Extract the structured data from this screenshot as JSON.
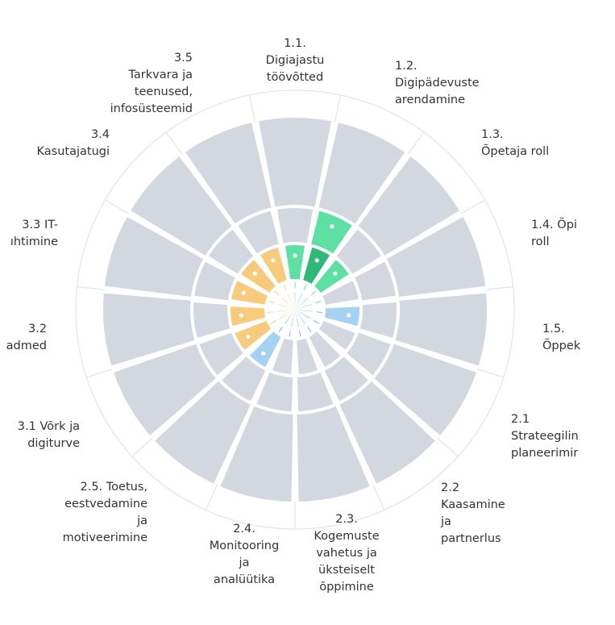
{
  "chart_data": {
    "type": "polar-bar",
    "max_level": 4,
    "colors": {
      "empty": "#d3d7df",
      "ring": "#ffffff",
      "outer_circle": "#e4e4e4",
      "green": "#5edfa4",
      "green_dark": "#2fb878",
      "orange": "#f8ca7c",
      "blue": "#a5d2f3",
      "blue_dark": "#6aaee4",
      "dot": "#ffffff"
    },
    "categories": [
      "1.1.\nDigiajastu\ntöövõtted",
      "1.2.\nDigipädevuste\narendamine",
      "1.3.\nÕpetaja roll",
      "1.4. Õpi\nroll",
      "1.5.\nÕppek",
      "2.1\nStrateegilin\nplaneerimir",
      "2.2\nKaasamine\nja\npartnerlus",
      "2.3.\nKogemuste\nvahetus ja\nüksteiselt\nõppimine",
      "2.4.\nMonitooring\nja\nanalüütika",
      "2.5. Toetus,\neestvedamine\nja\nmotiveerimine",
      "3.1 Võrk ja\ndigiturve",
      "3.2\nadmed",
      "3.3 IT-\nıhtimine",
      "3.4\nKasutajatugi",
      "3.5\nTarkvara ja\nteenused,\ninfosüsteemid"
    ],
    "values": [
      2,
      3,
      2,
      1,
      2,
      1,
      1,
      1,
      1,
      2,
      2,
      2,
      2,
      2,
      2
    ],
    "series": [
      {
        "color": "green",
        "categories": [
          0,
          1,
          2,
          3
        ]
      },
      {
        "color": "blue",
        "categories": [
          4,
          5,
          6,
          7,
          8,
          9
        ]
      },
      {
        "color": "orange",
        "categories": [
          10,
          11,
          12,
          13,
          14
        ]
      }
    ]
  }
}
